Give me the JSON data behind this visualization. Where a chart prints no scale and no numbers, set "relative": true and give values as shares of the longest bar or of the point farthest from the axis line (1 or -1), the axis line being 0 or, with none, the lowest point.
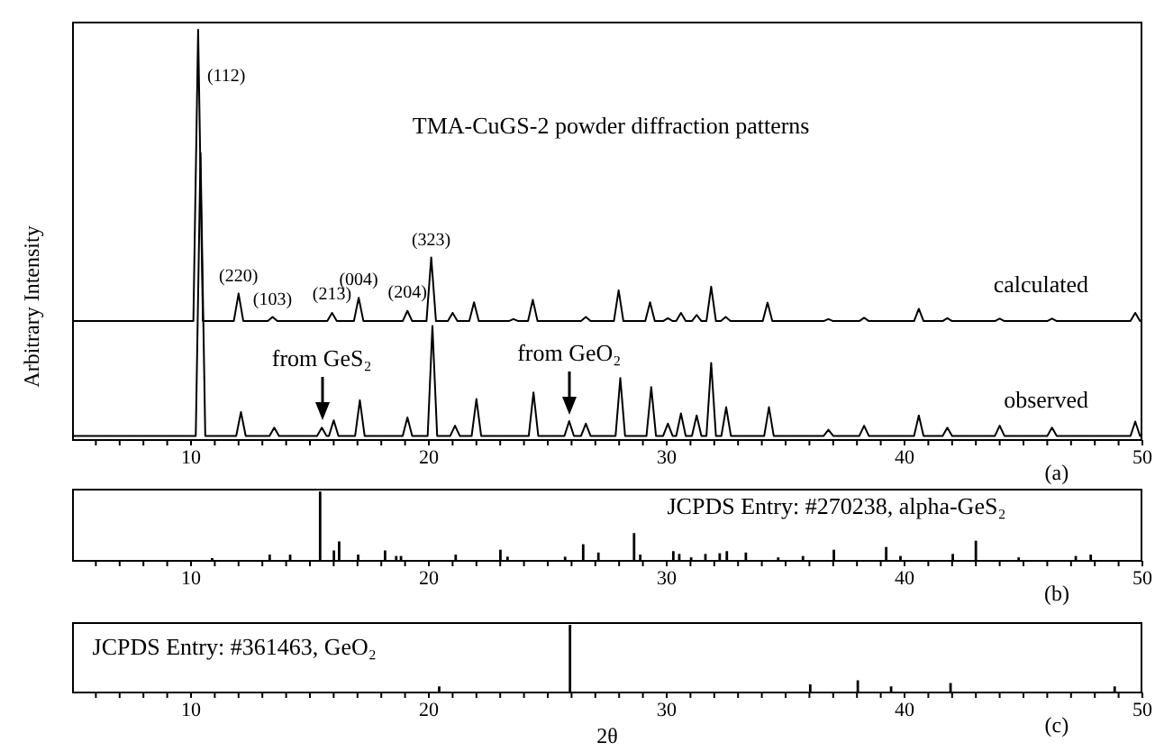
{
  "chart_data": [
    {
      "type": "line",
      "title": "TMA-CuGS-2 powder diffraction patterns",
      "ylabel": "Arbitrary Intensity",
      "relative": true,
      "xlim": [
        5,
        50
      ],
      "xticks": [
        {
          "value": 6,
          "label": null
        },
        {
          "value": 7,
          "label": null
        },
        {
          "value": 8,
          "label": null
        },
        {
          "value": 9,
          "label": null
        },
        10,
        {
          "value": 11,
          "label": null
        },
        {
          "value": 12,
          "label": null
        },
        {
          "value": 13,
          "label": null
        },
        {
          "value": 14,
          "label": null
        },
        {
          "value": 15,
          "label": null
        },
        {
          "value": 16,
          "label": null
        },
        {
          "value": 17,
          "label": null
        },
        {
          "value": 18,
          "label": null
        },
        {
          "value": 19,
          "label": null
        },
        20,
        {
          "value": 21,
          "label": null
        },
        {
          "value": 22,
          "label": null
        },
        {
          "value": 23,
          "label": null
        },
        {
          "value": 24,
          "label": null
        },
        {
          "value": 25,
          "label": null
        },
        {
          "value": 26,
          "label": null
        },
        {
          "value": 27,
          "label": null
        },
        {
          "value": 28,
          "label": null
        },
        {
          "value": 29,
          "label": null
        },
        30,
        {
          "value": 31,
          "label": null
        },
        {
          "value": 32,
          "label": null
        },
        {
          "value": 33,
          "label": null
        },
        {
          "value": 34,
          "label": null
        },
        {
          "value": 35,
          "label": null
        },
        {
          "value": 36,
          "label": null
        },
        {
          "value": 37,
          "label": null
        },
        {
          "value": 38,
          "label": null
        },
        {
          "value": 39,
          "label": null
        },
        40,
        {
          "value": 41,
          "label": null
        },
        {
          "value": 42,
          "label": null
        },
        {
          "value": 43,
          "label": null
        },
        {
          "value": 44,
          "label": null
        },
        {
          "value": 45,
          "label": null
        },
        {
          "value": 46,
          "label": null
        },
        {
          "value": 47,
          "label": null
        },
        {
          "value": 48,
          "label": null
        },
        {
          "value": 49,
          "label": null
        },
        50
      ],
      "series": [
        {
          "name": "calculated",
          "color": "#000000",
          "x": [
            5,
            10.1,
            10.3,
            10.5,
            11.8,
            12,
            12.2,
            13.23,
            13.43,
            13.63,
            15.73,
            15.93,
            16.13,
            16.85,
            17.05,
            17.25,
            18.9,
            19.1,
            19.3,
            19.9,
            20.1,
            20.3,
            20.8,
            21,
            21.2,
            21.7,
            21.9,
            22.1,
            23.36,
            23.56,
            23.76,
            24.17,
            24.37,
            24.57,
            26.4,
            26.6,
            26.8,
            27.78,
            27.98,
            28.18,
            29.1,
            29.3,
            29.5,
            29.85,
            30.05,
            30.25,
            30.4,
            30.6,
            30.8,
            31.06,
            31.26,
            31.46,
            31.67,
            31.87,
            32.07,
            32.28,
            32.48,
            32.68,
            34.04,
            34.24,
            34.44,
            36.6,
            36.8,
            37,
            38.1,
            38.3,
            38.5,
            40.4,
            40.6,
            40.8,
            41.6,
            41.8,
            42,
            43.8,
            44,
            44.2,
            46,
            46.2,
            46.4,
            49.5,
            49.7,
            49.9,
            50
          ],
          "values": [
            0.29,
            0.29,
            1,
            0.29,
            0.29,
            0.357,
            0.29,
            0.29,
            0.3,
            0.29,
            0.29,
            0.31,
            0.29,
            0.29,
            0.347,
            0.29,
            0.29,
            0.315,
            0.29,
            0.29,
            0.445,
            0.29,
            0.29,
            0.31,
            0.29,
            0.29,
            0.336,
            0.29,
            0.29,
            0.295,
            0.29,
            0.29,
            0.342,
            0.29,
            0.29,
            0.3,
            0.29,
            0.29,
            0.365,
            0.29,
            0.29,
            0.336,
            0.29,
            0.29,
            0.297,
            0.29,
            0.29,
            0.31,
            0.29,
            0.29,
            0.305,
            0.29,
            0.29,
            0.374,
            0.29,
            0.29,
            0.3,
            0.29,
            0.29,
            0.335,
            0.29,
            0.29,
            0.295,
            0.29,
            0.29,
            0.298,
            0.29,
            0.29,
            0.32,
            0.29,
            0.29,
            0.297,
            0.29,
            0.29,
            0.296,
            0.29,
            0.29,
            0.296,
            0.29,
            0.29,
            0.31,
            0.29,
            0.29
          ]
        },
        {
          "name": "observed",
          "color": "#000000",
          "x": [
            5,
            10.2,
            10.4,
            10.6,
            11.9,
            12.1,
            12.3,
            13.3,
            13.5,
            13.7,
            15.3,
            15.5,
            15.7,
            15.8,
            16,
            16.2,
            16.9,
            17.1,
            17.3,
            18.9,
            19.1,
            19.3,
            19.95,
            20.15,
            20.35,
            20.9,
            21.1,
            21.3,
            21.8,
            22,
            22.2,
            24.2,
            24.4,
            24.6,
            25.7,
            25.9,
            26.1,
            26.4,
            26.6,
            26.8,
            27.85,
            28.05,
            28.25,
            29.15,
            29.35,
            29.55,
            29.85,
            30.05,
            30.25,
            30.4,
            30.6,
            30.8,
            31.06,
            31.26,
            31.46,
            31.67,
            31.87,
            32.07,
            32.3,
            32.5,
            32.7,
            34.1,
            34.3,
            34.5,
            36.6,
            36.8,
            37,
            38.1,
            38.3,
            38.5,
            40.4,
            40.6,
            40.8,
            41.6,
            41.8,
            42,
            43.8,
            44,
            44.2,
            46,
            46.2,
            46.4,
            49.5,
            49.7,
            49.9,
            50
          ],
          "values": [
            0.01,
            0.01,
            0.7,
            0.01,
            0.01,
            0.068,
            0.01,
            0.01,
            0.03,
            0.01,
            0.01,
            0.03,
            0.01,
            0.01,
            0.048,
            0.01,
            0.01,
            0.097,
            0.01,
            0.01,
            0.055,
            0.01,
            0.01,
            0.278,
            0.01,
            0.01,
            0.035,
            0.01,
            0.01,
            0.1,
            0.01,
            0.01,
            0.116,
            0.01,
            0.01,
            0.046,
            0.01,
            0.01,
            0.04,
            0.01,
            0.01,
            0.151,
            0.01,
            0.01,
            0.129,
            0.01,
            0.01,
            0.04,
            0.01,
            0.01,
            0.065,
            0.01,
            0.01,
            0.06,
            0.01,
            0.01,
            0.188,
            0.01,
            0.01,
            0.08,
            0.01,
            0.01,
            0.08,
            0.01,
            0.01,
            0.025,
            0.01,
            0.01,
            0.035,
            0.01,
            0.01,
            0.06,
            0.01,
            0.01,
            0.03,
            0.01,
            0.01,
            0.035,
            0.01,
            0.01,
            0.03,
            0.01,
            0.01,
            0.045,
            0.01,
            0.01
          ]
        }
      ],
      "annotations": [
        "(a)",
        {
          "text": "(112)",
          "x": 10.3,
          "y": 1
        },
        {
          "text": "(220)",
          "x": 12,
          "y": 0.357
        },
        {
          "text": "(103)",
          "x": 13.43,
          "y": 0.3
        },
        {
          "text": "(213)",
          "x": 15.93,
          "y": 0.31
        },
        {
          "text": "(004)",
          "x": 17.05,
          "y": 0.347
        },
        {
          "text": "(204)",
          "x": 19.1,
          "y": 0.315
        },
        {
          "text": "(323)",
          "x": 20.1,
          "y": 0.445
        },
        {
          "text": "from GeS₂",
          "x": 15.5,
          "y": 0.03
        },
        {
          "text": "from GeO₂",
          "x": 25.9,
          "y": 0.046
        }
      ]
    },
    {
      "type": "bar",
      "title": "JCPDS Entry: #270238, alpha-GeS₂",
      "relative": true,
      "xlim": [
        5,
        50
      ],
      "xticks": [
        {
          "value": 6,
          "label": null
        },
        {
          "value": 7,
          "label": null
        },
        {
          "value": 8,
          "label": null
        },
        {
          "value": 9,
          "label": null
        },
        10,
        {
          "value": 11,
          "label": null
        },
        {
          "value": 12,
          "label": null
        },
        {
          "value": 13,
          "label": null
        },
        {
          "value": 14,
          "label": null
        },
        {
          "value": 15,
          "label": null
        },
        {
          "value": 16,
          "label": null
        },
        {
          "value": 17,
          "label": null
        },
        {
          "value": 18,
          "label": null
        },
        {
          "value": 19,
          "label": null
        },
        20,
        {
          "value": 21,
          "label": null
        },
        {
          "value": 22,
          "label": null
        },
        {
          "value": 23,
          "label": null
        },
        {
          "value": 24,
          "label": null
        },
        {
          "value": 25,
          "label": null
        },
        {
          "value": 26,
          "label": null
        },
        {
          "value": 27,
          "label": null
        },
        {
          "value": 28,
          "label": null
        },
        {
          "value": 29,
          "label": null
        },
        30,
        {
          "value": 31,
          "label": null
        },
        {
          "value": 32,
          "label": null
        },
        {
          "value": 33,
          "label": null
        },
        {
          "value": 34,
          "label": null
        },
        {
          "value": 35,
          "label": null
        },
        {
          "value": 36,
          "label": null
        },
        {
          "value": 37,
          "label": null
        },
        {
          "value": 38,
          "label": null
        },
        {
          "value": 39,
          "label": null
        },
        40,
        {
          "value": 41,
          "label": null
        },
        {
          "value": 42,
          "label": null
        },
        {
          "value": 43,
          "label": null
        },
        {
          "value": 44,
          "label": null
        },
        {
          "value": 45,
          "label": null
        },
        {
          "value": 46,
          "label": null
        },
        {
          "value": 47,
          "label": null
        },
        {
          "value": 48,
          "label": null
        },
        {
          "value": 49,
          "label": null
        },
        50
      ],
      "x": [
        10.86,
        13.28,
        14.14,
        15.4,
        15.98,
        16.2,
        17.0,
        18.13,
        18.6,
        18.8,
        21.1,
        22.98,
        23.28,
        25.7,
        26.46,
        27.1,
        28.6,
        28.86,
        30.25,
        30.5,
        31.0,
        31.6,
        32.2,
        32.5,
        33.3,
        34.66,
        35.7,
        37.0,
        39.2,
        39.8,
        42.0,
        42.97,
        44.77,
        47.17,
        47.8
      ],
      "values": [
        0.04,
        0.09,
        0.09,
        1,
        0.15,
        0.28,
        0.09,
        0.15,
        0.07,
        0.07,
        0.09,
        0.16,
        0.06,
        0.06,
        0.24,
        0.12,
        0.4,
        0.09,
        0.14,
        0.1,
        0.05,
        0.1,
        0.11,
        0.14,
        0.12,
        0.05,
        0.07,
        0.16,
        0.2,
        0.07,
        0.1,
        0.29,
        0.05,
        0.07,
        0.09
      ],
      "color": "#000000",
      "annotations": [
        "(b)"
      ]
    },
    {
      "type": "bar",
      "title": "JCPDS Entry: #361463, GeO₂",
      "xlabel": "2θ",
      "relative": true,
      "xlim": [
        5,
        50
      ],
      "xticks": [
        {
          "value": 6,
          "label": null
        },
        {
          "value": 7,
          "label": null
        },
        {
          "value": 8,
          "label": null
        },
        {
          "value": 9,
          "label": null
        },
        10,
        {
          "value": 11,
          "label": null
        },
        {
          "value": 12,
          "label": null
        },
        {
          "value": 13,
          "label": null
        },
        {
          "value": 14,
          "label": null
        },
        {
          "value": 15,
          "label": null
        },
        {
          "value": 16,
          "label": null
        },
        {
          "value": 17,
          "label": null
        },
        {
          "value": 18,
          "label": null
        },
        {
          "value": 19,
          "label": null
        },
        20,
        {
          "value": 21,
          "label": null
        },
        {
          "value": 22,
          "label": null
        },
        {
          "value": 23,
          "label": null
        },
        {
          "value": 24,
          "label": null
        },
        {
          "value": 25,
          "label": null
        },
        {
          "value": 26,
          "label": null
        },
        {
          "value": 27,
          "label": null
        },
        {
          "value": 28,
          "label": null
        },
        {
          "value": 29,
          "label": null
        },
        30,
        {
          "value": 31,
          "label": null
        },
        {
          "value": 32,
          "label": null
        },
        {
          "value": 33,
          "label": null
        },
        {
          "value": 34,
          "label": null
        },
        {
          "value": 35,
          "label": null
        },
        {
          "value": 36,
          "label": null
        },
        {
          "value": 37,
          "label": null
        },
        {
          "value": 38,
          "label": null
        },
        {
          "value": 39,
          "label": null
        },
        40,
        {
          "value": 41,
          "label": null
        },
        {
          "value": 42,
          "label": null
        },
        {
          "value": 43,
          "label": null
        },
        {
          "value": 44,
          "label": null
        },
        {
          "value": 45,
          "label": null
        },
        {
          "value": 46,
          "label": null
        },
        {
          "value": 47,
          "label": null
        },
        {
          "value": 48,
          "label": null
        },
        {
          "value": 49,
          "label": null
        },
        50
      ],
      "x": [
        20.4,
        25.9,
        36.0,
        38.0,
        39.4,
        41.9,
        48.8
      ],
      "values": [
        0.09,
        1,
        0.12,
        0.18,
        0.09,
        0.14,
        0.09
      ],
      "color": "#000000",
      "annotations": [
        "(c)"
      ]
    }
  ]
}
